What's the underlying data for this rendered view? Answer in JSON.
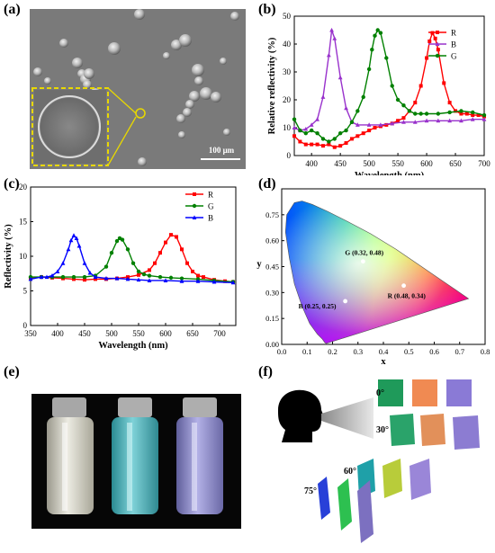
{
  "panels": {
    "a": "(a)",
    "b": "(b)",
    "c": "(c)",
    "d": "(d)",
    "e": "(e)",
    "f": "(f)"
  },
  "panel_a": {
    "scale_bar": "100 μm"
  },
  "panel_f": {
    "angles": [
      "0°",
      "30°",
      "60°",
      "75°"
    ]
  },
  "colors": {
    "R": "#ff0000",
    "G": "#008000",
    "B": "#0000ff",
    "purple": "#9932cc",
    "inset_outline": "#e8d800"
  },
  "chart_data": [
    {
      "id": "b",
      "type": "line",
      "xlabel": "Wavelength (nm)",
      "ylabel": "Relative reflectivity (%)",
      "xlim": [
        370,
        700
      ],
      "ylim": [
        0,
        50
      ],
      "xticks": [
        400,
        450,
        500,
        550,
        600,
        650,
        700
      ],
      "yticks": [
        0,
        10,
        20,
        30,
        40,
        50
      ],
      "legend_position": "top-right",
      "series": [
        {
          "name": "R",
          "color": "#ff0000",
          "marker": "square",
          "x": [
            370,
            380,
            390,
            400,
            410,
            420,
            430,
            440,
            450,
            460,
            470,
            480,
            490,
            500,
            510,
            520,
            530,
            540,
            550,
            560,
            570,
            580,
            590,
            600,
            605,
            610,
            615,
            620,
            630,
            640,
            650,
            660,
            670,
            680,
            690,
            700
          ],
          "y": [
            7,
            5,
            4,
            4,
            4,
            3.5,
            4,
            3,
            3.5,
            4.5,
            6,
            7,
            8,
            9,
            10,
            10.5,
            11,
            11.5,
            12.5,
            13.5,
            16,
            19,
            25,
            35,
            41,
            44,
            42,
            38,
            26,
            19,
            16,
            15,
            15,
            14.5,
            14.5,
            14
          ]
        },
        {
          "name": "B",
          "color": "#9932cc",
          "marker": "triangle",
          "x": [
            370,
            380,
            390,
            400,
            410,
            420,
            430,
            435,
            440,
            450,
            460,
            470,
            480,
            500,
            520,
            540,
            560,
            580,
            600,
            620,
            640,
            660,
            680,
            700
          ],
          "y": [
            10,
            9,
            9.5,
            11,
            13,
            21,
            36,
            45,
            42,
            28,
            17,
            12,
            11,
            11,
            11,
            11.5,
            12,
            12,
            12.5,
            12.5,
            12.5,
            12.5,
            13,
            13
          ]
        },
        {
          "name": "G",
          "color": "#008000",
          "marker": "circle",
          "x": [
            370,
            380,
            390,
            400,
            410,
            420,
            430,
            440,
            450,
            460,
            470,
            480,
            490,
            500,
            505,
            510,
            515,
            520,
            530,
            540,
            550,
            560,
            570,
            580,
            590,
            600,
            620,
            640,
            660,
            680,
            700
          ],
          "y": [
            13,
            9,
            8,
            9,
            8,
            6,
            5,
            6,
            8,
            9,
            12,
            16,
            21,
            31,
            38,
            43,
            45,
            44,
            35,
            25,
            20,
            18,
            16,
            15,
            15,
            15,
            15,
            15.5,
            16,
            15.5,
            14.5
          ]
        }
      ]
    },
    {
      "id": "c",
      "type": "line",
      "xlabel": "Wavelength (nm)",
      "ylabel": "Reflectivity (%)",
      "xlim": [
        350,
        730
      ],
      "ylim": [
        0,
        20
      ],
      "xticks": [
        350,
        400,
        450,
        500,
        550,
        600,
        650,
        700
      ],
      "yticks": [
        0,
        5,
        10,
        15,
        20
      ],
      "legend_position": "top-right",
      "series": [
        {
          "name": "R",
          "color": "#ff0000",
          "marker": "square",
          "x": [
            350,
            370,
            390,
            410,
            430,
            450,
            470,
            490,
            510,
            530,
            550,
            570,
            580,
            590,
            600,
            610,
            620,
            630,
            640,
            650,
            660,
            670,
            690,
            710,
            725
          ],
          "y": [
            6.8,
            7,
            6.9,
            6.8,
            6.7,
            6.6,
            6.7,
            6.7,
            6.8,
            7,
            7.3,
            8,
            9,
            10.5,
            12,
            13.1,
            12.8,
            11,
            9,
            7.8,
            7.2,
            7,
            6.6,
            6.4,
            6.3
          ]
        },
        {
          "name": "G",
          "color": "#008000",
          "marker": "circle",
          "x": [
            350,
            370,
            390,
            410,
            430,
            450,
            470,
            490,
            500,
            510,
            515,
            520,
            530,
            540,
            550,
            560,
            570,
            590,
            610,
            630,
            660,
            690,
            725
          ],
          "y": [
            7,
            7,
            7,
            7,
            7,
            7,
            7.2,
            8.5,
            10.5,
            12.2,
            12.6,
            12.4,
            11,
            9,
            7.8,
            7.4,
            7.2,
            7,
            6.9,
            6.8,
            6.7,
            6.5,
            6.3
          ]
        },
        {
          "name": "B",
          "color": "#0000ff",
          "marker": "triangle",
          "x": [
            350,
            370,
            380,
            390,
            400,
            410,
            420,
            425,
            430,
            435,
            440,
            450,
            460,
            470,
            490,
            510,
            530,
            550,
            570,
            600,
            630,
            660,
            690,
            725
          ],
          "y": [
            6.7,
            7,
            7,
            7.2,
            7.8,
            9,
            11,
            12.3,
            13,
            12.6,
            11.5,
            9,
            7.6,
            7,
            6.8,
            6.8,
            6.7,
            6.6,
            6.5,
            6.5,
            6.4,
            6.4,
            6.3,
            6.2
          ]
        }
      ]
    },
    {
      "id": "d",
      "type": "scatter",
      "xlabel": "x",
      "ylabel": "y",
      "xlim": [
        0,
        0.8
      ],
      "ylim": [
        0,
        0.9
      ],
      "xticks": [
        0.0,
        0.1,
        0.2,
        0.3,
        0.4,
        0.5,
        0.6,
        0.7,
        0.8
      ],
      "yticks": [
        0.0,
        0.15,
        0.3,
        0.45,
        0.6,
        0.75
      ],
      "points": [
        {
          "label": "G (0.32, 0.48)",
          "x": 0.32,
          "y": 0.48
        },
        {
          "label": "R (0.48, 0.34)",
          "x": 0.48,
          "y": 0.34
        },
        {
          "label": "B (0.25, 0.25)",
          "x": 0.25,
          "y": 0.25
        }
      ]
    }
  ]
}
